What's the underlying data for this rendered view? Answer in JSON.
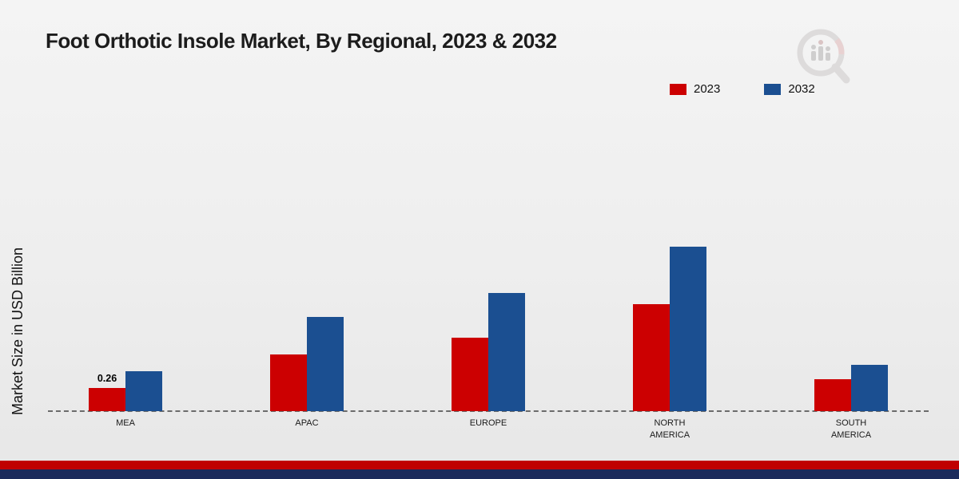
{
  "chart_data": {
    "type": "bar",
    "title": "Foot Orthotic Insole Market, By Regional, 2023 & 2032",
    "xlabel": "",
    "ylabel": "Market Size in USD Billion",
    "categories": [
      "MEA",
      "APAC",
      "EUROPE",
      "NORTH AMERICA",
      "SOUTH AMERICA"
    ],
    "series": [
      {
        "name": "2023",
        "color": "#cc0001",
        "values": [
          0.26,
          0.64,
          0.83,
          1.21,
          0.36
        ]
      },
      {
        "name": "2032",
        "color": "#1b4f91",
        "values": [
          0.45,
          1.06,
          1.33,
          1.86,
          0.52
        ]
      }
    ],
    "annotations": [
      {
        "series": "2023",
        "category": "MEA",
        "text": "0.26"
      }
    ],
    "ylim": [
      0,
      2.0
    ],
    "grid": false,
    "legend_position": "top-right",
    "baseline_style": "dashed"
  },
  "decor": {
    "footer_red_strip_color": "#c00000",
    "footer_navy_strip_color": "#1b2b5c",
    "watermark_icon": "bar-chart-magnifier-logo"
  }
}
